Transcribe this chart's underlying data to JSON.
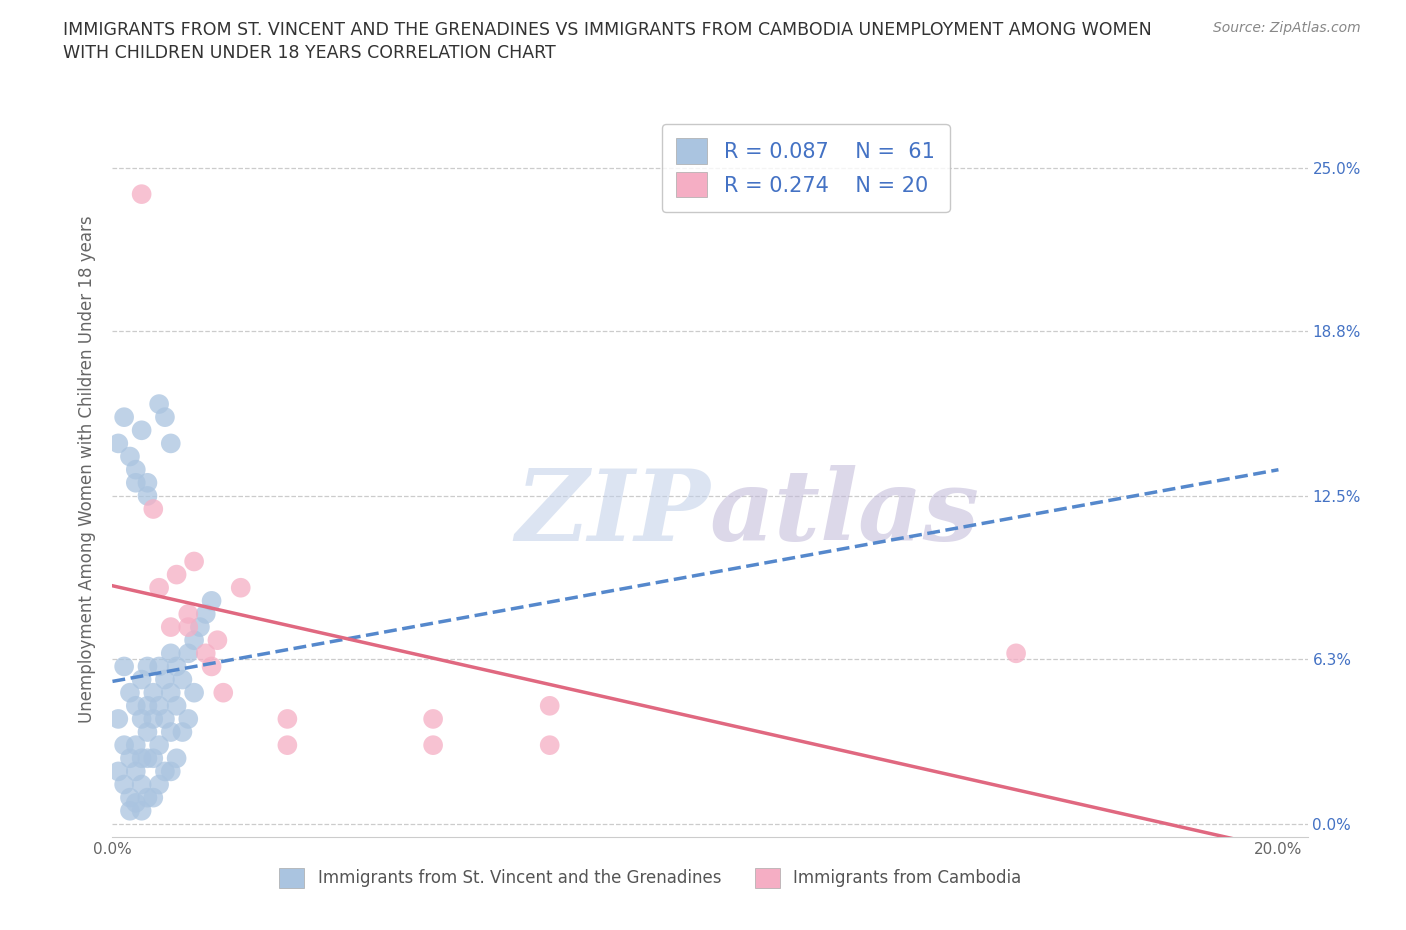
{
  "title_line1": "IMMIGRANTS FROM ST. VINCENT AND THE GRENADINES VS IMMIGRANTS FROM CAMBODIA UNEMPLOYMENT AMONG WOMEN",
  "title_line2": "WITH CHILDREN UNDER 18 YEARS CORRELATION CHART",
  "source": "Source: ZipAtlas.com",
  "ylabel": "Unemployment Among Women with Children Under 18 years",
  "xlim": [
    0.0,
    0.205
  ],
  "ylim": [
    -0.005,
    0.275
  ],
  "xticks": [
    0.0,
    0.05,
    0.1,
    0.15,
    0.2
  ],
  "xticklabels": [
    "0.0%",
    "",
    "",
    "",
    "20.0%"
  ],
  "yticks_right": [
    0.0,
    0.063,
    0.125,
    0.188,
    0.25
  ],
  "yticklabels_right": [
    "0.0%",
    "6.3%",
    "12.5%",
    "18.8%",
    "25.0%"
  ],
  "blue_color": "#aac4e0",
  "pink_color": "#f5aec4",
  "blue_line_color": "#5588cc",
  "blue_line_dash": "--",
  "pink_line_color": "#e06880",
  "pink_line_dash": "-",
  "watermark": "ZIPatlas",
  "watermark_zip_color": "#c8d8ec",
  "watermark_atlas_color": "#c8bce0",
  "legend_label1": "Immigrants from St. Vincent and the Grenadines",
  "legend_label2": "Immigrants from Cambodia",
  "background_color": "#ffffff",
  "grid_color": "#cccccc",
  "title_color": "#333333",
  "axis_label_color": "#666666",
  "tick_color": "#666666",
  "right_tick_color": "#4472c4",
  "blue_x": [
    0.001,
    0.001,
    0.002,
    0.002,
    0.002,
    0.003,
    0.003,
    0.003,
    0.003,
    0.004,
    0.004,
    0.004,
    0.004,
    0.005,
    0.005,
    0.005,
    0.005,
    0.005,
    0.006,
    0.006,
    0.006,
    0.006,
    0.006,
    0.007,
    0.007,
    0.007,
    0.007,
    0.008,
    0.008,
    0.008,
    0.008,
    0.009,
    0.009,
    0.009,
    0.01,
    0.01,
    0.01,
    0.01,
    0.011,
    0.011,
    0.011,
    0.012,
    0.012,
    0.013,
    0.013,
    0.014,
    0.014,
    0.015,
    0.016,
    0.017,
    0.001,
    0.002,
    0.003,
    0.004,
    0.004,
    0.005,
    0.006,
    0.006,
    0.008,
    0.009,
    0.01
  ],
  "blue_y": [
    0.04,
    0.02,
    0.06,
    0.03,
    0.015,
    0.05,
    0.025,
    0.01,
    0.005,
    0.045,
    0.03,
    0.02,
    0.008,
    0.055,
    0.04,
    0.025,
    0.015,
    0.005,
    0.06,
    0.045,
    0.035,
    0.025,
    0.01,
    0.05,
    0.04,
    0.025,
    0.01,
    0.06,
    0.045,
    0.03,
    0.015,
    0.055,
    0.04,
    0.02,
    0.065,
    0.05,
    0.035,
    0.02,
    0.06,
    0.045,
    0.025,
    0.055,
    0.035,
    0.065,
    0.04,
    0.07,
    0.05,
    0.075,
    0.08,
    0.085,
    0.145,
    0.155,
    0.14,
    0.13,
    0.135,
    0.15,
    0.125,
    0.13,
    0.16,
    0.155,
    0.145
  ],
  "pink_x": [
    0.005,
    0.007,
    0.008,
    0.01,
    0.011,
    0.013,
    0.013,
    0.014,
    0.016,
    0.017,
    0.018,
    0.019,
    0.022,
    0.03,
    0.03,
    0.055,
    0.055,
    0.075,
    0.075,
    0.155
  ],
  "pink_y": [
    0.24,
    0.12,
    0.09,
    0.075,
    0.095,
    0.075,
    0.08,
    0.1,
    0.065,
    0.06,
    0.07,
    0.05,
    0.09,
    0.03,
    0.04,
    0.03,
    0.04,
    0.03,
    0.045,
    0.065
  ]
}
